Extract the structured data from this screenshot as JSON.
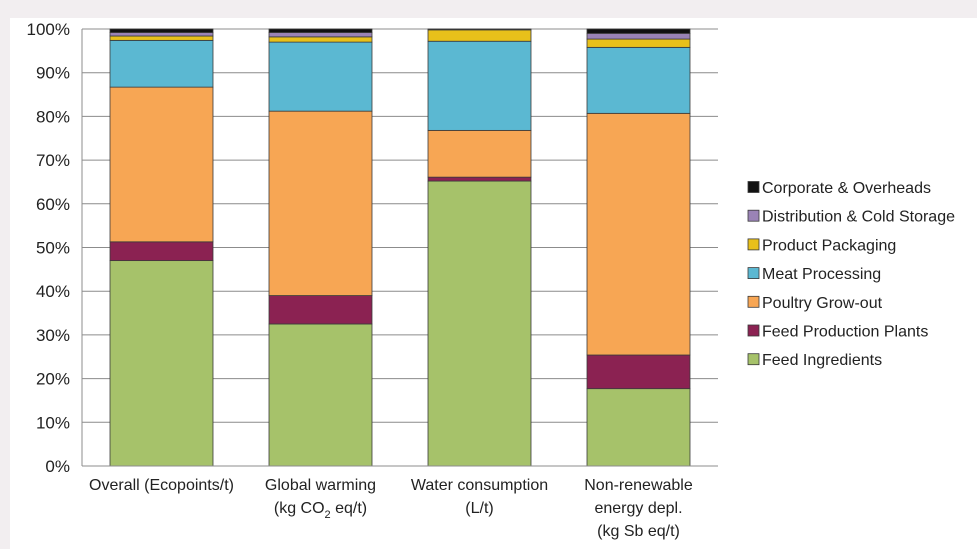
{
  "chart_data": {
    "type": "bar",
    "stacked": true,
    "categories": [
      "Overall (Ecopoints/t)",
      "Global warming (kg CO2 eq/t)",
      "Water consumption (L/t)",
      "Non-renewable energy depl. (kg Sb eq/t)"
    ],
    "category_label_lines": [
      [
        {
          "text": "Overall (Ecopoints/t)"
        }
      ],
      [
        {
          "text": "Global warming"
        },
        {
          "text": "(kg CO",
          "sub": "2",
          "after": " eq/t)"
        }
      ],
      [
        {
          "text": "Water consumption"
        },
        {
          "text": "(L/t)"
        }
      ],
      [
        {
          "text": "Non-renewable"
        },
        {
          "text": "energy depl."
        },
        {
          "text": "(kg Sb eq/t)"
        }
      ]
    ],
    "series": [
      {
        "name": "Feed Ingredients",
        "color": "#a6c26a",
        "values": [
          47.0,
          32.5,
          65.2,
          17.7
        ]
      },
      {
        "name": "Feed Production Plants",
        "color": "#8b2252",
        "values": [
          4.3,
          6.5,
          0.9,
          7.7
        ]
      },
      {
        "name": "Poultry Grow-out",
        "color": "#f7a654",
        "values": [
          35.4,
          42.2,
          10.7,
          55.3
        ]
      },
      {
        "name": "Meat Processing",
        "color": "#5bb8d2",
        "values": [
          10.7,
          15.8,
          20.4,
          15.1
        ]
      },
      {
        "name": "Product Packaging",
        "color": "#e8c01a",
        "values": [
          1.0,
          1.2,
          2.6,
          1.9
        ]
      },
      {
        "name": "Distribution & Cold Storage",
        "color": "#9a83b6",
        "values": [
          0.8,
          1.0,
          0.0,
          1.3
        ]
      },
      {
        "name": "Corporate & Overheads",
        "color": "#111111",
        "values": [
          0.8,
          0.8,
          0.2,
          1.0
        ]
      }
    ],
    "ylim": [
      0,
      100
    ],
    "yticks": [
      "0%",
      "10%",
      "20%",
      "30%",
      "40%",
      "50%",
      "60%",
      "70%",
      "80%",
      "90%",
      "100%"
    ],
    "grid": true,
    "legend_position": "right",
    "legend_order": "reverse-stack"
  }
}
